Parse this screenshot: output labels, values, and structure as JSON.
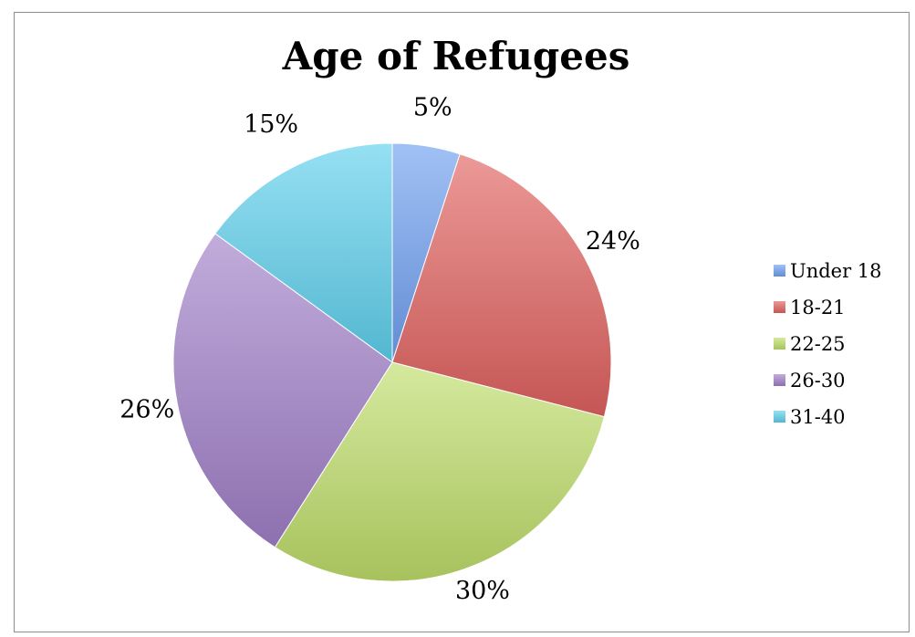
{
  "chart_data": {
    "type": "pie",
    "title": "Age of Refugees",
    "categories": [
      "Under 18",
      "18-21",
      "22-25",
      "26-30",
      "31-40"
    ],
    "values": [
      5,
      24,
      30,
      26,
      15
    ],
    "data_labels": [
      "5%",
      "24%",
      "30%",
      "26%",
      "15%"
    ],
    "colors": [
      "#6f9ff0",
      "#e0625f",
      "#bedd6a",
      "#a07fc8",
      "#5ed0ec"
    ],
    "legend": "right"
  }
}
